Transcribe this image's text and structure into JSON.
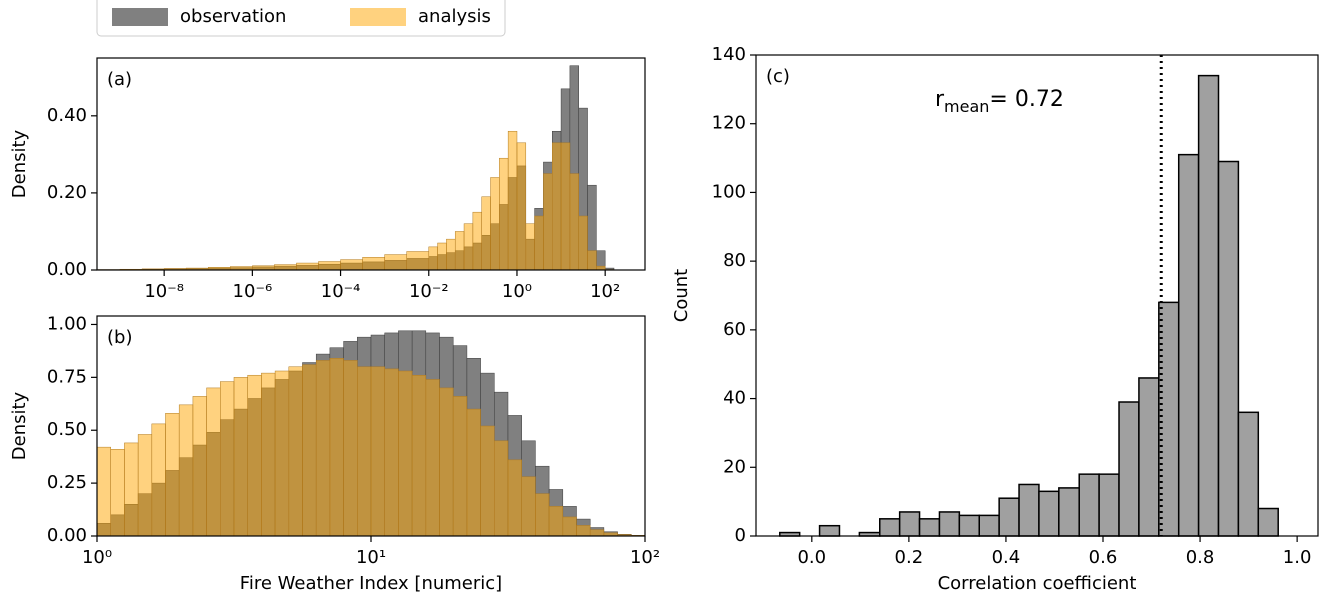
{
  "chart_data": [
    {
      "type": "histogram",
      "panel_label": "(a)",
      "ylabel": "Density",
      "log_x": true,
      "legend": "upper left",
      "bins": [
        3.162e-10,
        1e-09,
        3.162e-09,
        1e-08,
        3.162e-08,
        1e-07,
        3.162e-07,
        1e-06,
        3.162e-06,
        1e-05,
        3.162e-05,
        0.0001,
        0.0003162,
        0.001,
        0.003162,
        0.01,
        0.01585,
        0.02512,
        0.03981,
        0.0631,
        0.1,
        0.1585,
        0.2512,
        0.3981,
        0.631,
        1,
        1.585,
        2.512,
        3.981,
        6.31,
        10,
        15.85,
        25.12,
        39.81,
        63.1,
        100,
        158.5
      ],
      "series": [
        {
          "name": "observation",
          "color": "#808080",
          "alpha": 1,
          "values": [
            0.001,
            0.001,
            0.002,
            0.003,
            0.004,
            0.005,
            0.006,
            0.008,
            0.01,
            0.012,
            0.015,
            0.018,
            0.021,
            0.025,
            0.03,
            0.035,
            0.04,
            0.045,
            0.05,
            0.06,
            0.07,
            0.09,
            0.12,
            0.17,
            0.24,
            0.27,
            0.08,
            0.16,
            0.28,
            0.36,
            0.47,
            0.53,
            0.42,
            0.22,
            0.05,
            0.005
          ]
        },
        {
          "name": "analysis",
          "color": "#ffa500",
          "alpha": 0.5,
          "values": [
            0.001,
            0.002,
            0.003,
            0.004,
            0.005,
            0.007,
            0.009,
            0.011,
            0.014,
            0.018,
            0.022,
            0.027,
            0.033,
            0.04,
            0.048,
            0.06,
            0.07,
            0.08,
            0.1,
            0.12,
            0.15,
            0.19,
            0.24,
            0.29,
            0.36,
            0.33,
            0.12,
            0.14,
            0.25,
            0.33,
            0.33,
            0.25,
            0.14,
            0.05,
            0.01,
            0.001
          ]
        }
      ],
      "xlim": [
        3e-10,
        800
      ],
      "xticks": [
        {
          "value": 1e-08,
          "label": "10⁻⁸"
        },
        {
          "value": 1e-06,
          "label": "10⁻⁶"
        },
        {
          "value": 0.0001,
          "label": "10⁻⁴"
        },
        {
          "value": 0.01,
          "label": "10⁻²"
        },
        {
          "value": 1,
          "label": "10⁰"
        },
        {
          "value": 100,
          "label": "10²"
        }
      ],
      "ylim": [
        0,
        0.55
      ],
      "yticks": [
        {
          "value": 0,
          "label": "0.00"
        },
        {
          "value": 0.2,
          "label": "0.20"
        },
        {
          "value": 0.4,
          "label": "0.40"
        }
      ]
    },
    {
      "type": "histogram",
      "panel_label": "(b)",
      "ylabel": "Density",
      "xlabel": "Fire Weather Index [numeric]",
      "log_x": true,
      "bins": [
        1,
        1.122,
        1.259,
        1.413,
        1.585,
        1.778,
        1.995,
        2.239,
        2.512,
        2.818,
        3.162,
        3.548,
        3.981,
        4.467,
        5.012,
        5.623,
        6.31,
        7.079,
        7.943,
        8.913,
        10,
        11.22,
        12.59,
        14.13,
        15.85,
        17.78,
        19.95,
        22.39,
        25.12,
        28.18,
        31.62,
        35.48,
        39.81,
        44.67,
        50.12,
        56.23,
        63.1,
        70.79,
        79.43,
        89.13,
        100
      ],
      "series": [
        {
          "name": "observation",
          "color": "#808080",
          "alpha": 1,
          "values": [
            0.06,
            0.1,
            0.15,
            0.2,
            0.25,
            0.31,
            0.37,
            0.43,
            0.49,
            0.55,
            0.6,
            0.65,
            0.7,
            0.74,
            0.78,
            0.82,
            0.86,
            0.89,
            0.92,
            0.94,
            0.95,
            0.96,
            0.97,
            0.97,
            0.96,
            0.94,
            0.9,
            0.84,
            0.77,
            0.68,
            0.57,
            0.45,
            0.33,
            0.22,
            0.14,
            0.08,
            0.04,
            0.02,
            0.008,
            0.003
          ]
        },
        {
          "name": "analysis",
          "color": "#ffa500",
          "alpha": 0.5,
          "values": [
            0.42,
            0.41,
            0.44,
            0.48,
            0.53,
            0.58,
            0.62,
            0.66,
            0.7,
            0.73,
            0.75,
            0.76,
            0.77,
            0.78,
            0.8,
            0.81,
            0.83,
            0.84,
            0.83,
            0.8,
            0.8,
            0.79,
            0.78,
            0.76,
            0.74,
            0.7,
            0.66,
            0.6,
            0.52,
            0.45,
            0.36,
            0.28,
            0.2,
            0.14,
            0.09,
            0.05,
            0.03,
            0.015,
            0.007,
            0.003
          ]
        }
      ],
      "xlim": [
        1,
        100
      ],
      "xticks": [
        {
          "value": 1,
          "label": "10⁰"
        },
        {
          "value": 10,
          "label": "10¹"
        },
        {
          "value": 100,
          "label": "10²"
        }
      ],
      "ylim": [
        0,
        1.04
      ],
      "yticks": [
        {
          "value": 0,
          "label": "0.00"
        },
        {
          "value": 0.25,
          "label": "0.25"
        },
        {
          "value": 0.5,
          "label": "0.50"
        },
        {
          "value": 0.75,
          "label": "0.75"
        },
        {
          "value": 1,
          "label": "1.00"
        }
      ]
    },
    {
      "type": "histogram",
      "panel_label": "(c)",
      "ylabel": "Count",
      "xlabel": "Correlation coefficient",
      "log_x": false,
      "bins": [
        -0.066,
        -0.025,
        0.016,
        0.057,
        0.098,
        0.14,
        0.181,
        0.222,
        0.263,
        0.304,
        0.345,
        0.386,
        0.427,
        0.468,
        0.509,
        0.551,
        0.592,
        0.633,
        0.674,
        0.715,
        0.756,
        0.797,
        0.838,
        0.879,
        0.92,
        0.961
      ],
      "values": [
        1,
        0,
        3,
        0,
        1,
        5,
        7,
        5,
        7,
        6,
        6,
        11,
        15,
        13,
        14,
        18,
        18,
        39,
        46,
        68,
        111,
        134,
        109,
        36,
        8
      ],
      "color": "#a0a0a0",
      "edgecolor": "#000000",
      "vline": {
        "value": 0.72,
        "symbol": "r",
        "subscript": "mean",
        "label": "= 0.72"
      },
      "xlim": [
        -0.115,
        1.043
      ],
      "xticks": [
        {
          "value": 0,
          "label": "0.0"
        },
        0.2,
        0.4,
        0.6,
        0.8,
        {
          "value": 1,
          "label": "1.0"
        }
      ],
      "ylim": [
        0,
        140
      ],
      "yticks": [
        0,
        20,
        40,
        60,
        80,
        100,
        120,
        140
      ]
    }
  ]
}
